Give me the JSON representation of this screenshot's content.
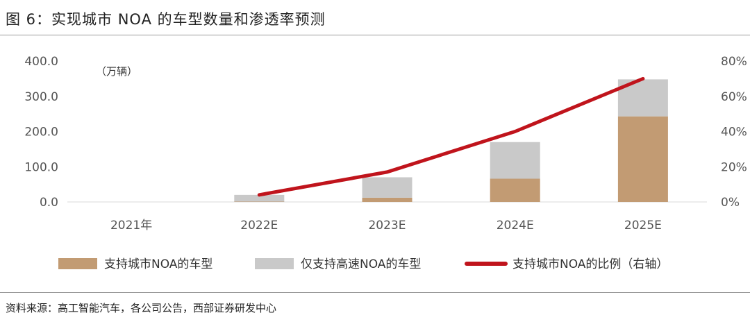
{
  "title": "图 6：实现城市 NOA 的车型数量和渗透率预测",
  "source": "资料来源：高工智能汽车，各公司公告，西部证券研发中心",
  "colors": {
    "city_noa": "#c29b73",
    "highway_only": "#c9c9c9",
    "ratio_line": "#c0141c"
  },
  "chart_data": {
    "type": "bar",
    "stacked": true,
    "unit_label": "（万辆）",
    "categories": [
      "2021年",
      "2022E",
      "2023E",
      "2024E",
      "2025E"
    ],
    "series": [
      {
        "name": "支持城市NOA的车型",
        "type": "bar",
        "axis": "left",
        "values": [
          0,
          1,
          12,
          66,
          243
        ]
      },
      {
        "name": "仅支持高速NOA的车型",
        "type": "bar",
        "axis": "left",
        "values": [
          0,
          19,
          58,
          104,
          105
        ]
      },
      {
        "name": "支持城市NOA的比例（右轴）",
        "type": "line",
        "axis": "right",
        "values": [
          null,
          4,
          17,
          40,
          70
        ]
      }
    ],
    "y_left": {
      "min": 0,
      "max": 400,
      "ticks": [
        "0.0",
        "100.0",
        "200.0",
        "300.0",
        "400.0"
      ]
    },
    "y_right": {
      "min": 0,
      "max": 80,
      "ticks": [
        "0%",
        "20%",
        "40%",
        "60%",
        "80%"
      ]
    },
    "grid": false,
    "legend_position": "bottom"
  }
}
